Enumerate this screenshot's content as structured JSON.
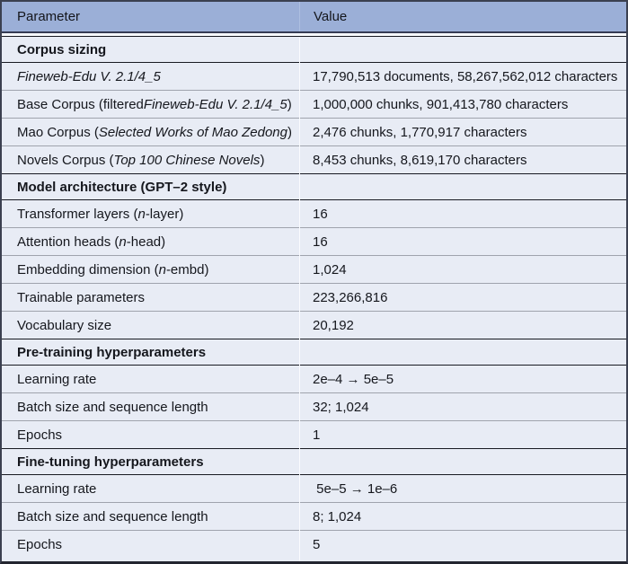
{
  "table": {
    "title": "Model and training parameters table",
    "columns": [
      "Parameter",
      "Value"
    ],
    "colors": {
      "header_bg": "#9bafd7",
      "row_bg": "#e8ecf5",
      "separator_gray": "#9fa3ad",
      "rule_dark": "#181a22",
      "outer_border": "#3b4050"
    },
    "rows": [
      {
        "kind": "section",
        "param": [
          {
            "t": "Corpus sizing"
          }
        ],
        "value": ""
      },
      {
        "kind": "data",
        "param": [
          {
            "t": "Fineweb-Edu V. 2.1/4_5",
            "i": true
          }
        ],
        "value": "17,790,513 documents, 58,267,562,012 characters"
      },
      {
        "kind": "data",
        "param": [
          {
            "t": "Base Corpus (filtered "
          },
          {
            "t": "Fineweb-Edu V. 2.1/4_5",
            "i": true
          },
          {
            "t": ")"
          }
        ],
        "value": "1,000,000 chunks, 901,413,780 characters"
      },
      {
        "kind": "data",
        "param": [
          {
            "t": "Mao Corpus ("
          },
          {
            "t": "Selected Works of Mao Zedong",
            "i": true
          },
          {
            "t": ")"
          }
        ],
        "value": "2,476 chunks, 1,770,917 characters"
      },
      {
        "kind": "data",
        "param": [
          {
            "t": "Novels Corpus ("
          },
          {
            "t": "Top 100 Chinese Novels",
            "i": true
          },
          {
            "t": ")"
          }
        ],
        "value": "8,453 chunks, 8,619,170 characters"
      },
      {
        "kind": "section",
        "param": [
          {
            "t": "Model architecture (GPT–2 style)"
          }
        ],
        "value": ""
      },
      {
        "kind": "data",
        "param": [
          {
            "t": "Transformer layers ("
          },
          {
            "t": "n",
            "i": true
          },
          {
            "t": "-layer)"
          }
        ],
        "value": "16"
      },
      {
        "kind": "data",
        "param": [
          {
            "t": "Attention heads ("
          },
          {
            "t": "n",
            "i": true
          },
          {
            "t": "-head)"
          }
        ],
        "value": "16"
      },
      {
        "kind": "data",
        "param": [
          {
            "t": "Embedding dimension ("
          },
          {
            "t": "n",
            "i": true
          },
          {
            "t": "-embd)"
          }
        ],
        "value": "1,024"
      },
      {
        "kind": "data",
        "param": [
          {
            "t": "Trainable parameters"
          }
        ],
        "value": "223,266,816"
      },
      {
        "kind": "data",
        "param": [
          {
            "t": "Vocabulary size"
          }
        ],
        "value": "20,192"
      },
      {
        "kind": "section",
        "param": [
          {
            "t": "Pre-training hyperparameters"
          }
        ],
        "value": ""
      },
      {
        "kind": "data",
        "param": [
          {
            "t": "Learning rate"
          }
        ],
        "value": "2e–4 → 5e–5"
      },
      {
        "kind": "data",
        "param": [
          {
            "t": "Batch size and sequence length"
          }
        ],
        "value": "32; 1,024"
      },
      {
        "kind": "data",
        "param": [
          {
            "t": "Epochs"
          }
        ],
        "value": "1"
      },
      {
        "kind": "section",
        "param": [
          {
            "t": "Fine-tuning hyperparameters"
          }
        ],
        "value": ""
      },
      {
        "kind": "data",
        "param": [
          {
            "t": "Learning rate"
          }
        ],
        "value": " 5e–5 → 1e–6"
      },
      {
        "kind": "data",
        "param": [
          {
            "t": "Batch size and sequence length"
          }
        ],
        "value": "8; 1,024"
      },
      {
        "kind": "data",
        "param": [
          {
            "t": "Epochs"
          }
        ],
        "value": "5"
      }
    ]
  }
}
